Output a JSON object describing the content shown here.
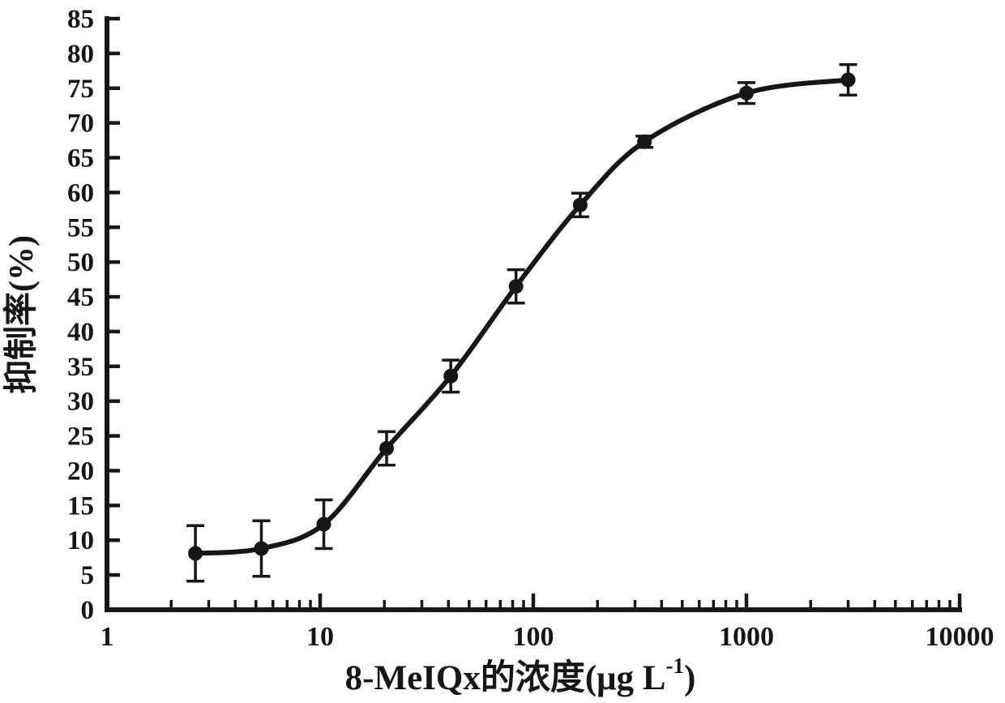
{
  "figure": {
    "background": "#ffffff",
    "ink_color": "#161616"
  },
  "chart_data": {
    "type": "scatter",
    "subtype": "dose-response-curve-with-error-bars",
    "xlabel": "8-MeIQx的浓度(μg L⁻¹)",
    "xlabel_main": "8-MeIQx的浓度(μg L",
    "xlabel_sup": "-1",
    "xlabel_close": ")",
    "ylabel": "抑制率(%)",
    "x_scale": "log",
    "xlim": [
      1,
      10000
    ],
    "ylim": [
      0,
      85
    ],
    "y_tick_step": 5,
    "x_major_ticks": [
      1,
      10,
      100,
      1000,
      10000
    ],
    "x_tick_labels": [
      "1",
      "10",
      "100",
      "1000",
      "10000"
    ],
    "grid": false,
    "legend": null,
    "marker": "filled-circle",
    "line": "smooth-fit-through-points",
    "series": [
      {
        "name": "8-MeIQx inhibition rate",
        "x": [
          2.6,
          5.3,
          10.4,
          20.5,
          41,
          83,
          166,
          332,
          1000,
          3000
        ],
        "y": [
          8.1,
          8.8,
          12.3,
          23.2,
          33.6,
          46.5,
          58.2,
          67.3,
          74.3,
          76.2
        ],
        "yerr": [
          4.0,
          4.0,
          3.5,
          2.4,
          2.3,
          2.4,
          1.7,
          0.8,
          1.5,
          2.2
        ]
      }
    ]
  }
}
